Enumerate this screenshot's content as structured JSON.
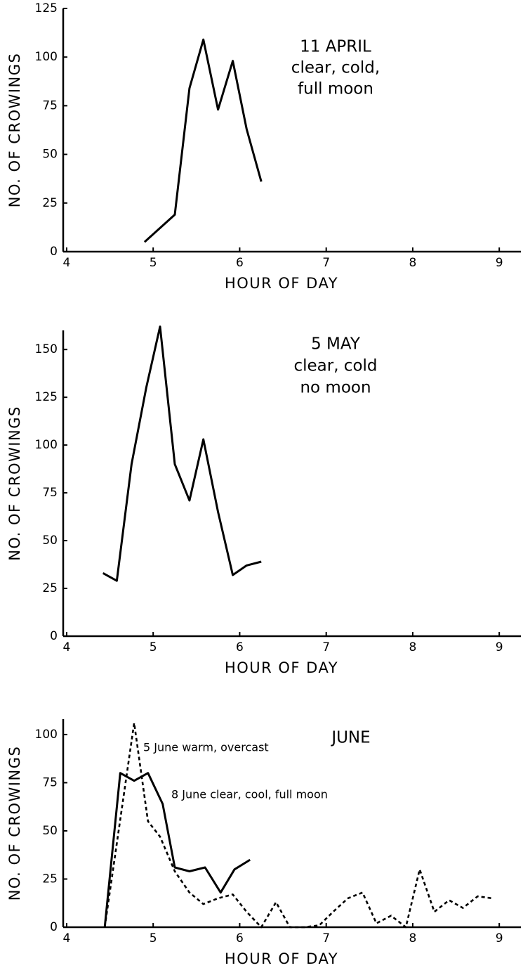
{
  "chart_data": [
    {
      "type": "line",
      "annotation": [
        "11 APRIL",
        "clear, cold,",
        "full moon"
      ],
      "xlabel": "HOUR OF DAY",
      "ylabel": "NO. OF CROWINGS",
      "xlim": [
        3.96,
        9.25
      ],
      "ylim": [
        0,
        125
      ],
      "xticks": [
        4,
        5,
        6,
        7,
        8,
        9
      ],
      "yticks": [
        0,
        25,
        50,
        75,
        100,
        125
      ],
      "series": [
        {
          "color": "#000000",
          "style": "solid",
          "x": [
            4.9,
            5.25,
            5.42,
            5.58,
            5.75,
            5.92,
            6.08,
            6.25
          ],
          "values": [
            5,
            19,
            84,
            109,
            73,
            98,
            63,
            36
          ]
        }
      ]
    },
    {
      "type": "line",
      "annotation": [
        "5 MAY",
        "clear, cold",
        "no moon"
      ],
      "xlabel": "HOUR OF DAY",
      "ylabel": "NO. OF CROWINGS",
      "xlim": [
        3.96,
        9.25
      ],
      "ylim": [
        0,
        160
      ],
      "xticks": [
        4,
        5,
        6,
        7,
        8,
        9
      ],
      "yticks": [
        0,
        25,
        50,
        75,
        100,
        125,
        150
      ],
      "series": [
        {
          "color": "#000000",
          "style": "solid",
          "x": [
            4.42,
            4.58,
            4.75,
            4.92,
            5.08,
            5.25,
            5.42,
            5.58,
            5.75,
            5.92,
            6.08,
            6.25
          ],
          "values": [
            33,
            29,
            90,
            130,
            162,
            90,
            71,
            103,
            65,
            32,
            37,
            39
          ]
        }
      ]
    },
    {
      "type": "line",
      "annotation": [
        "JUNE"
      ],
      "xlabel": "HOUR OF DAY",
      "ylabel": "NO. OF CROWINGS",
      "xlim": [
        3.96,
        9.25
      ],
      "ylim": [
        0,
        108
      ],
      "xticks": [
        4,
        5,
        6,
        7,
        8,
        9
      ],
      "yticks": [
        0,
        25,
        50,
        75,
        100
      ],
      "series": [
        {
          "name": "5 June warm, overcast",
          "color": "#000000",
          "style": "dashed",
          "x": [
            4.44,
            4.78,
            4.94,
            5.08,
            5.25,
            5.42,
            5.58,
            5.75,
            5.92,
            6.08,
            6.25,
            6.42,
            6.58,
            6.75,
            6.92,
            7.08,
            7.25,
            7.42,
            7.58,
            7.75,
            7.92,
            8.08,
            8.25,
            8.42,
            8.58,
            8.75,
            8.92
          ],
          "values": [
            0,
            106,
            55,
            47,
            29,
            18,
            12,
            15,
            17,
            8,
            0,
            13,
            0,
            0,
            1,
            8,
            15,
            18,
            2,
            6,
            0,
            30,
            8,
            14,
            10,
            16,
            15
          ]
        },
        {
          "name": "8 June clear, cool, full moon",
          "color": "#000000",
          "style": "solid",
          "x": [
            4.44,
            4.62,
            4.78,
            4.94,
            5.11,
            5.25,
            5.42,
            5.6,
            5.78,
            5.94,
            6.12
          ],
          "values": [
            0,
            80,
            76,
            80,
            64,
            31,
            29,
            31,
            18,
            30,
            35
          ]
        }
      ]
    }
  ]
}
